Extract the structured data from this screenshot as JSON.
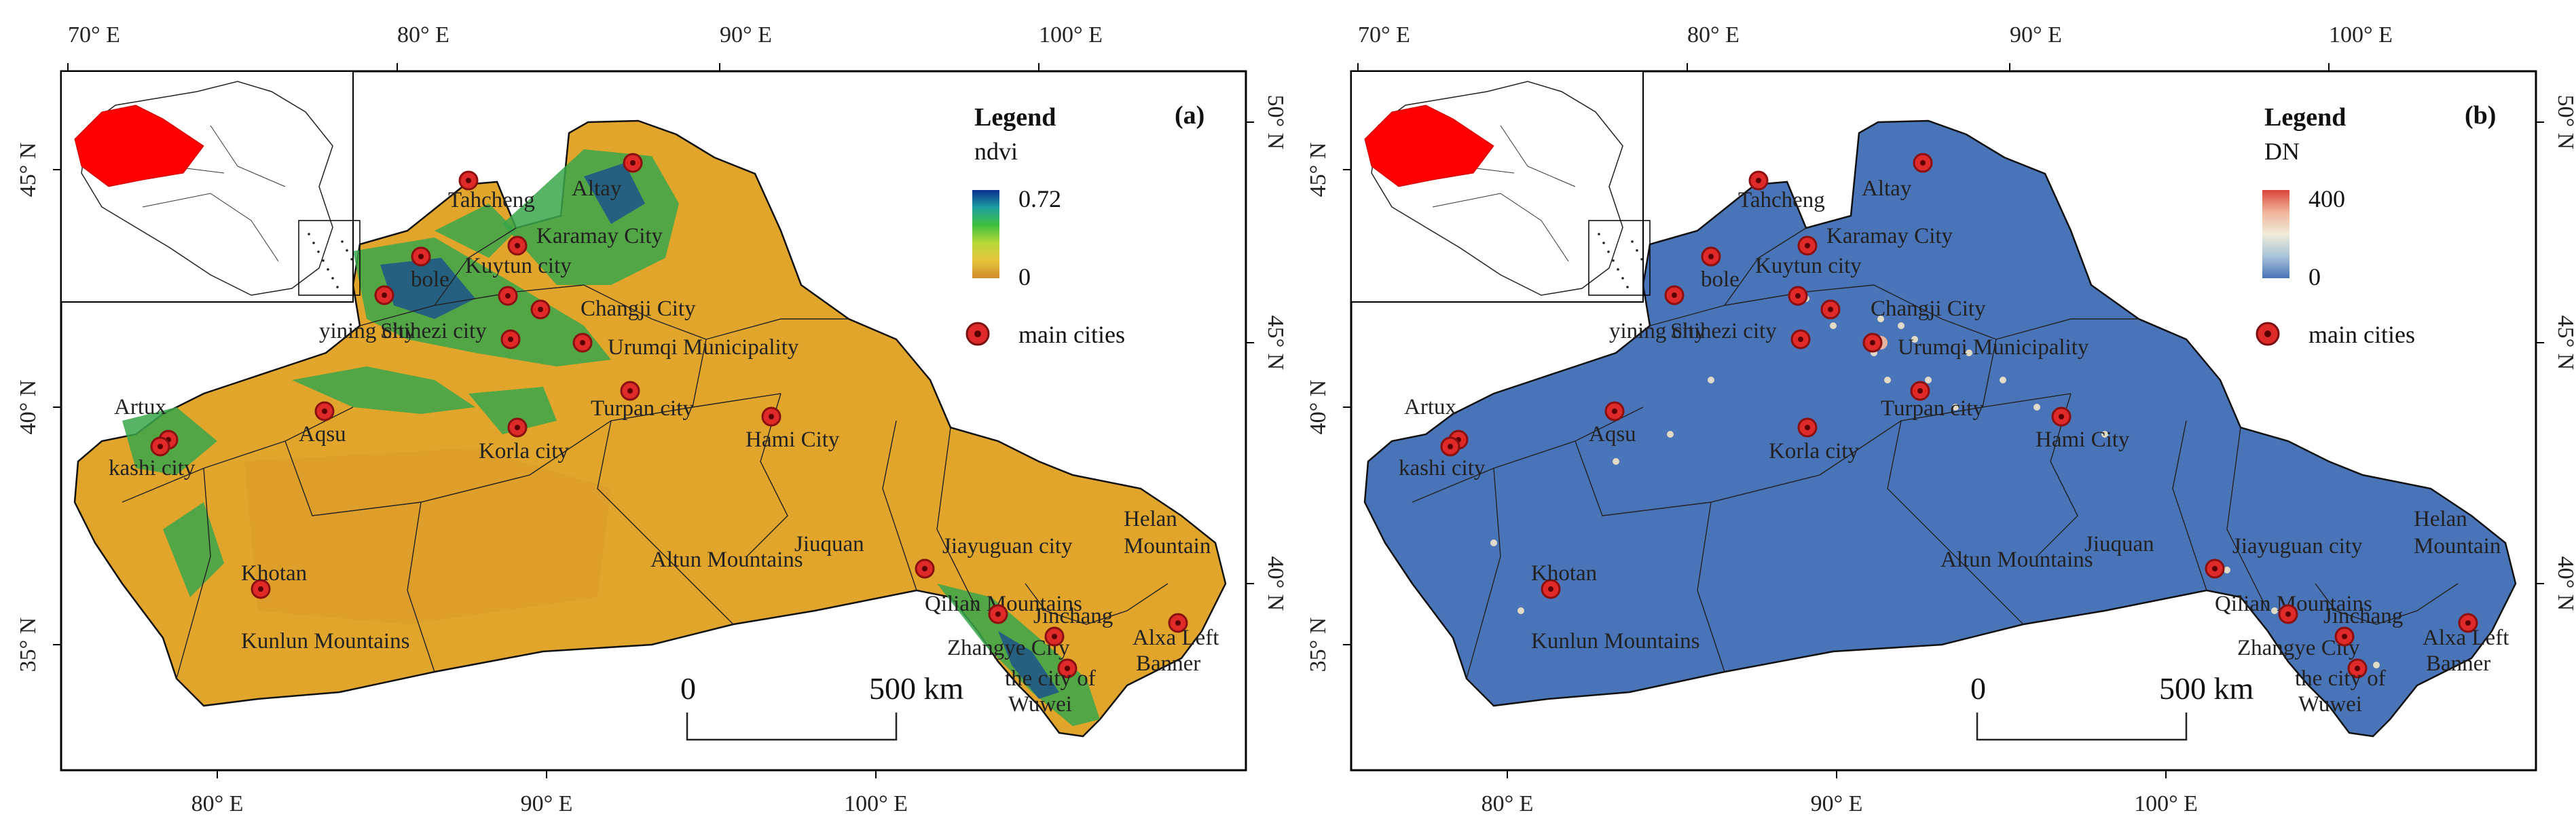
{
  "panels": [
    {
      "label": "(a)",
      "legend": {
        "title": "Legend",
        "field": "ndvi",
        "max_label": "0.72",
        "min_label": "0",
        "cities_label": "main cities",
        "ramp_colors": [
          "#0b2f8f",
          "#1ea0a0",
          "#3fbf3f",
          "#b8d83a",
          "#e6c43a",
          "#d08a2a"
        ]
      },
      "fill_color": "#e0a52a"
    },
    {
      "label": "(b)",
      "legend": {
        "title": "Legend",
        "field": "DN",
        "max_label": "400",
        "min_label": "0",
        "cities_label": "main cities",
        "ramp_colors": [
          "#d9453a",
          "#f0b49a",
          "#f0ecd8",
          "#a9c3d8",
          "#4a74b8"
        ]
      },
      "fill_color": "#4a74b8"
    }
  ],
  "ticks": {
    "top": [
      "70° E",
      "80° E",
      "90° E",
      "100° E"
    ],
    "bottom": [
      "80° E",
      "90° E",
      "100° E"
    ],
    "left": [
      "45° N",
      "40° N",
      "35° N"
    ],
    "right": [
      "50° N",
      "45° N",
      "40° N"
    ]
  },
  "scale_bar": {
    "zero": "0",
    "distance": "500  km"
  },
  "cities": [
    {
      "name": "Tahcheng"
    },
    {
      "name": "Altay"
    },
    {
      "name": "Karamay City"
    },
    {
      "name": "bole"
    },
    {
      "name": "Kuytun city"
    },
    {
      "name": "yining city"
    },
    {
      "name": "Shihezi city"
    },
    {
      "name": "Changji City"
    },
    {
      "name": "Urumqi Municipality"
    },
    {
      "name": "Turpan city"
    },
    {
      "name": "Hami City"
    },
    {
      "name": "Artux"
    },
    {
      "name": "kashi city"
    },
    {
      "name": "Aqsu"
    },
    {
      "name": "Korla city"
    },
    {
      "name": "Khotan"
    },
    {
      "name": "Jiayuguan city"
    },
    {
      "name": "Zhangye City"
    },
    {
      "name": "Jinchang"
    },
    {
      "name": "the city of Wuwei"
    },
    {
      "name": "Alxa Left Banner"
    }
  ],
  "places": [
    {
      "name": "Kunlun Mountains"
    },
    {
      "name": "Altun Mountains"
    },
    {
      "name": "Jiuquan"
    },
    {
      "name": "Qilian Mountains"
    },
    {
      "name": "Helan Mountain"
    }
  ]
}
